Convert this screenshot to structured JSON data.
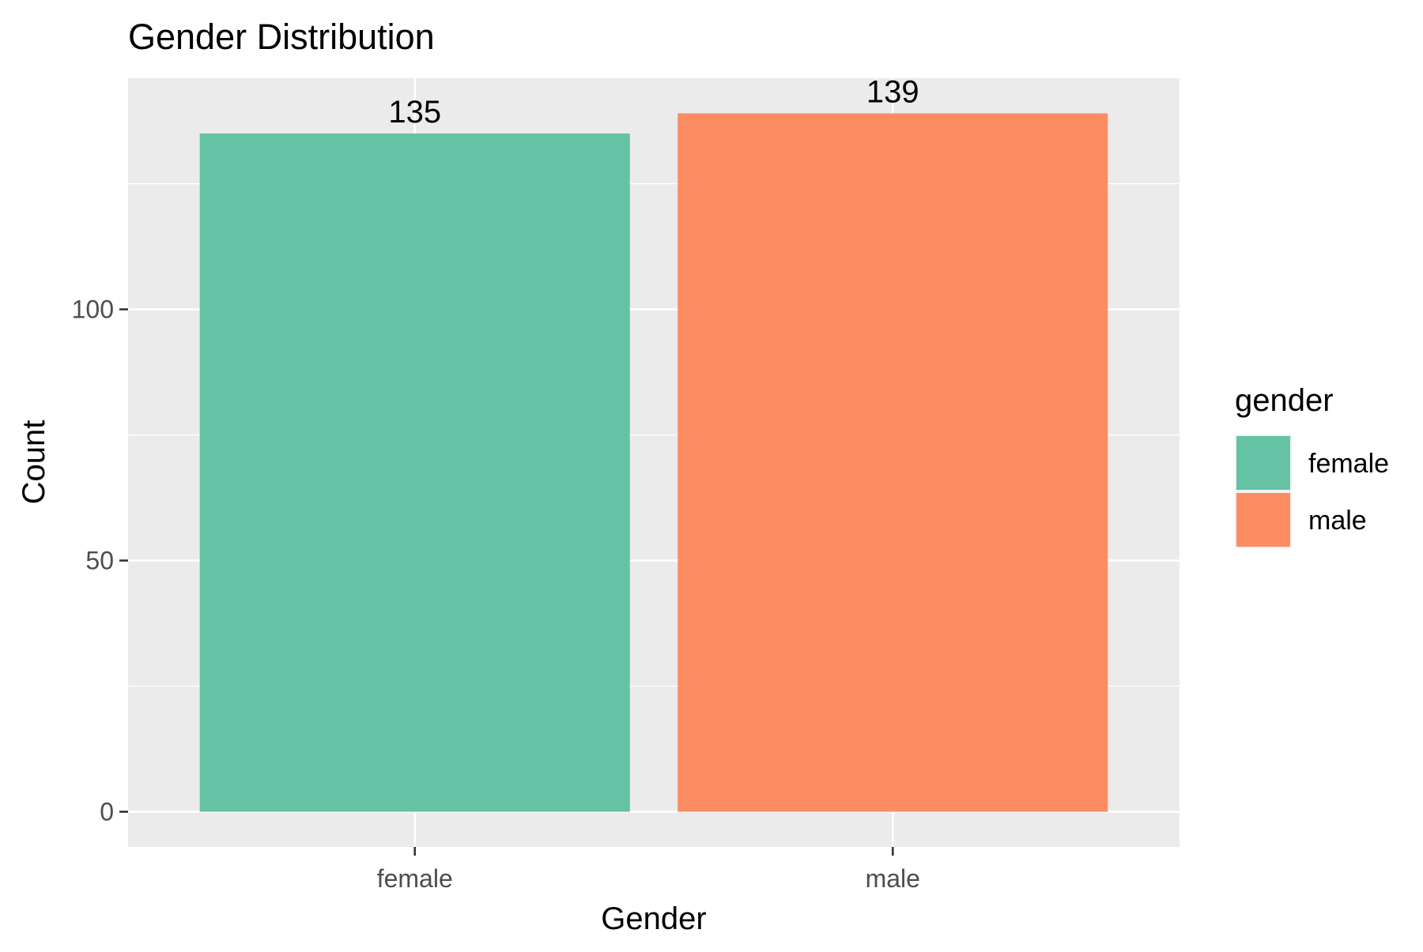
{
  "chart_data": {
    "type": "bar",
    "title": "Gender Distribution",
    "xlabel": "Gender",
    "ylabel": "Count",
    "categories": [
      "female",
      "male"
    ],
    "values": [
      135,
      139
    ],
    "data_labels": [
      "135",
      "139"
    ],
    "colors": [
      "#66c2a5",
      "#fc8d62"
    ],
    "ylim": [
      -7,
      146
    ],
    "y_ticks": [
      0,
      50,
      100
    ],
    "y_tick_labels": [
      "0",
      "50",
      "100"
    ],
    "y_minor_ticks": [
      25,
      75,
      125
    ],
    "grid": true,
    "panel_background": "#ebebeb",
    "legend": {
      "title": "gender",
      "placement": "right",
      "entries": [
        "female",
        "male"
      ]
    }
  }
}
